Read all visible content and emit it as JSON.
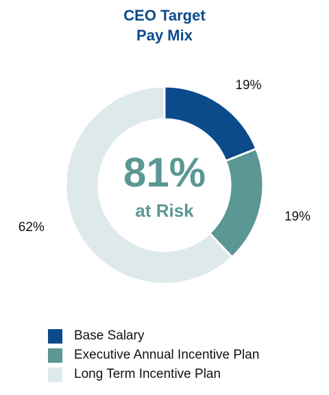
{
  "chart_data": {
    "type": "pie",
    "title": "CEO Target Pay Mix",
    "title_lines": [
      "CEO Target",
      "Pay Mix"
    ],
    "donut": true,
    "center_value": "81%",
    "center_label": "at Risk",
    "categories": [
      "Base Salary",
      "Executive Annual Incentive Plan",
      "Long Term Incentive Plan"
    ],
    "values": [
      19,
      19,
      62
    ],
    "value_labels": [
      "19%",
      "19%",
      "62%"
    ],
    "colors": [
      "#0b4a8b",
      "#5b9794",
      "#dde9ea"
    ],
    "legend_position": "bottom"
  },
  "colors": {
    "title": "#0b4a8b",
    "center_text": "#5b9794",
    "label_text": "#111111"
  }
}
